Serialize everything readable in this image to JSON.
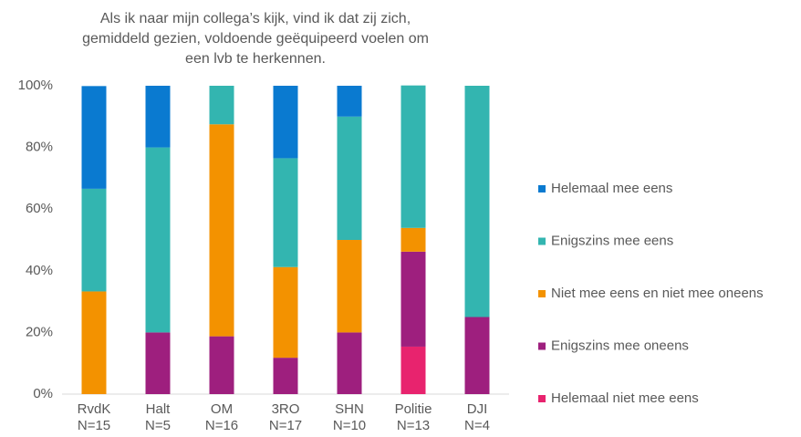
{
  "chart_data": {
    "type": "stacked_bar",
    "title": "Als ik naar mijn collega’s kijk, vind ik dat zij zich,\ngemiddeld gezien, voldoende geëquipeerd voelen om\neen lvb te herkennen.",
    "categories": [
      "RvdK\nN=15",
      "Halt\nN=5",
      "OM\nN=16",
      "3RO\nN=17",
      "SHN\nN=10",
      "Politie\nN=13",
      "DJI\nN=4"
    ],
    "series": [
      {
        "name": "Helemaal niet mee eens",
        "color": "#e8236e",
        "values": [
          0,
          0,
          0,
          0,
          0,
          15.4,
          0
        ]
      },
      {
        "name": "Enigszins mee oneens",
        "color": "#9e1f7e",
        "values": [
          0,
          20,
          18.75,
          11.8,
          20,
          30.8,
          25
        ]
      },
      {
        "name": "Niet mee eens en niet mee oneens",
        "color": "#f39200",
        "values": [
          33.3,
          0,
          68.75,
          29.4,
          30,
          7.7,
          0
        ]
      },
      {
        "name": "Enigszins mee eens",
        "color": "#33b5b0",
        "values": [
          33.3,
          60,
          12.5,
          35.3,
          40,
          46.2,
          75
        ]
      },
      {
        "name": "Helemaal mee eens",
        "color": "#0a7ad0",
        "values": [
          33.3,
          20,
          0,
          23.5,
          10,
          0,
          0
        ]
      }
    ],
    "ylim": [
      0,
      100
    ],
    "yticks": [
      {
        "value": 0,
        "label": "0%"
      },
      {
        "value": 20,
        "label": "20%"
      },
      {
        "value": 40,
        "label": "40%"
      },
      {
        "value": 60,
        "label": "60%"
      },
      {
        "value": 80,
        "label": "80%"
      },
      {
        "value": 100,
        "label": "100%"
      }
    ],
    "legend": "right"
  }
}
